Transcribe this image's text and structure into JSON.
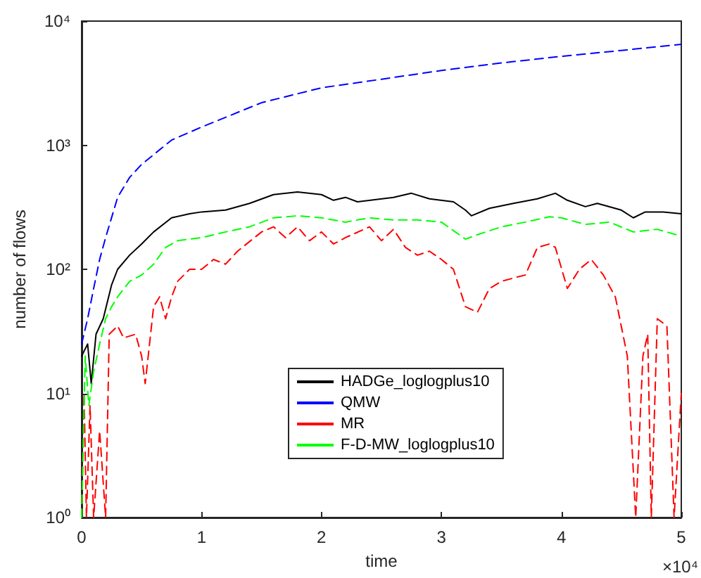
{
  "chart_data": {
    "type": "line",
    "xlabel": "time",
    "ylabel": "number of flows",
    "log": "y",
    "grid": false,
    "legend": "bottom",
    "marker": "none",
    "xlim": [
      0,
      5
    ],
    "xticks": [
      0,
      1,
      2,
      3,
      4,
      5
    ],
    "ylim": [
      1,
      10000
    ],
    "yticks": [
      {
        "value": 1,
        "label": "10⁰"
      },
      {
        "value": 10,
        "label": "10¹"
      },
      {
        "value": 100,
        "label": "10²"
      },
      {
        "value": 1000,
        "label": "10³"
      },
      {
        "value": 10000,
        "label": "10⁴"
      }
    ],
    "annotations": [
      "×10⁴"
    ],
    "series": [
      {
        "name": "HADGe_loglogplus10",
        "color": "#000000",
        "line_style": "solid",
        "x": [
          0,
          0.05,
          0.08,
          0.12,
          0.18,
          0.25,
          0.3,
          0.4,
          0.5,
          0.6,
          0.75,
          0.9,
          1,
          1.2,
          1.4,
          1.6,
          1.8,
          2,
          2.1,
          2.2,
          2.3,
          2.6,
          2.75,
          2.9,
          3.1,
          3.2,
          3.25,
          3.4,
          3.6,
          3.8,
          3.95,
          4.05,
          4.2,
          4.3,
          4.5,
          4.6,
          4.7,
          4.85,
          5
        ],
        "values": [
          20,
          25,
          12,
          30,
          40,
          75,
          100,
          130,
          160,
          200,
          260,
          280,
          290,
          300,
          340,
          400,
          420,
          400,
          360,
          380,
          350,
          380,
          410,
          370,
          350,
          300,
          270,
          310,
          340,
          370,
          410,
          360,
          320,
          340,
          300,
          260,
          290,
          290,
          280
        ]
      },
      {
        "name": "QMW",
        "color": "#0000ff",
        "line_style": "dashed",
        "x": [
          0,
          0.05,
          0.1,
          0.15,
          0.2,
          0.3,
          0.4,
          0.5,
          0.75,
          1,
          1.5,
          2,
          2.5,
          3,
          3.5,
          4,
          4.5,
          5
        ],
        "values": [
          25,
          40,
          70,
          120,
          180,
          380,
          550,
          700,
          1100,
          1400,
          2200,
          2900,
          3400,
          4000,
          4600,
          5200,
          5800,
          6500
        ]
      },
      {
        "name": "MR",
        "color": "#ff0000",
        "line_style": "dashed",
        "x": [
          0,
          0.02,
          0.04,
          0.07,
          0.1,
          0.15,
          0.2,
          0.23,
          0.3,
          0.35,
          0.45,
          0.5,
          0.53,
          0.6,
          0.65,
          0.7,
          0.75,
          0.8,
          0.9,
          1,
          1.1,
          1.2,
          1.3,
          1.5,
          1.6,
          1.7,
          1.8,
          1.9,
          2,
          2.1,
          2.2,
          2.4,
          2.5,
          2.6,
          2.7,
          2.8,
          2.9,
          3,
          3.1,
          3.2,
          3.3,
          3.4,
          3.5,
          3.6,
          3.7,
          3.8,
          3.9,
          3.95,
          4.05,
          4.15,
          4.25,
          4.35,
          4.45,
          4.55,
          4.62,
          4.68,
          4.72,
          4.75,
          4.8,
          4.88,
          4.94,
          5
        ],
        "values": [
          1,
          10,
          1,
          8,
          1,
          5,
          1,
          30,
          35,
          28,
          30,
          20,
          12,
          50,
          60,
          40,
          60,
          80,
          100,
          100,
          120,
          110,
          140,
          200,
          220,
          180,
          220,
          170,
          200,
          160,
          180,
          220,
          170,
          210,
          150,
          130,
          140,
          120,
          100,
          50,
          45,
          70,
          80,
          85,
          90,
          150,
          160,
          150,
          70,
          100,
          120,
          90,
          60,
          20,
          1,
          20,
          30,
          1,
          40,
          35,
          1,
          10
        ]
      },
      {
        "name": "F-D-MW_loglogplus10",
        "color": "#00ff00",
        "line_style": "dashed",
        "x": [
          0,
          0.03,
          0.06,
          0.1,
          0.15,
          0.2,
          0.25,
          0.3,
          0.4,
          0.5,
          0.6,
          0.7,
          0.8,
          1,
          1.2,
          1.4,
          1.6,
          1.8,
          2,
          2.2,
          2.4,
          2.6,
          2.8,
          3,
          3.2,
          3.3,
          3.5,
          3.7,
          3.9,
          4,
          4.2,
          4.4,
          4.6,
          4.8,
          5
        ],
        "values": [
          1,
          20,
          8,
          15,
          25,
          40,
          50,
          60,
          80,
          90,
          110,
          150,
          170,
          180,
          200,
          220,
          260,
          270,
          260,
          240,
          260,
          250,
          250,
          240,
          175,
          190,
          220,
          240,
          265,
          260,
          230,
          240,
          200,
          210,
          185
        ]
      }
    ]
  }
}
